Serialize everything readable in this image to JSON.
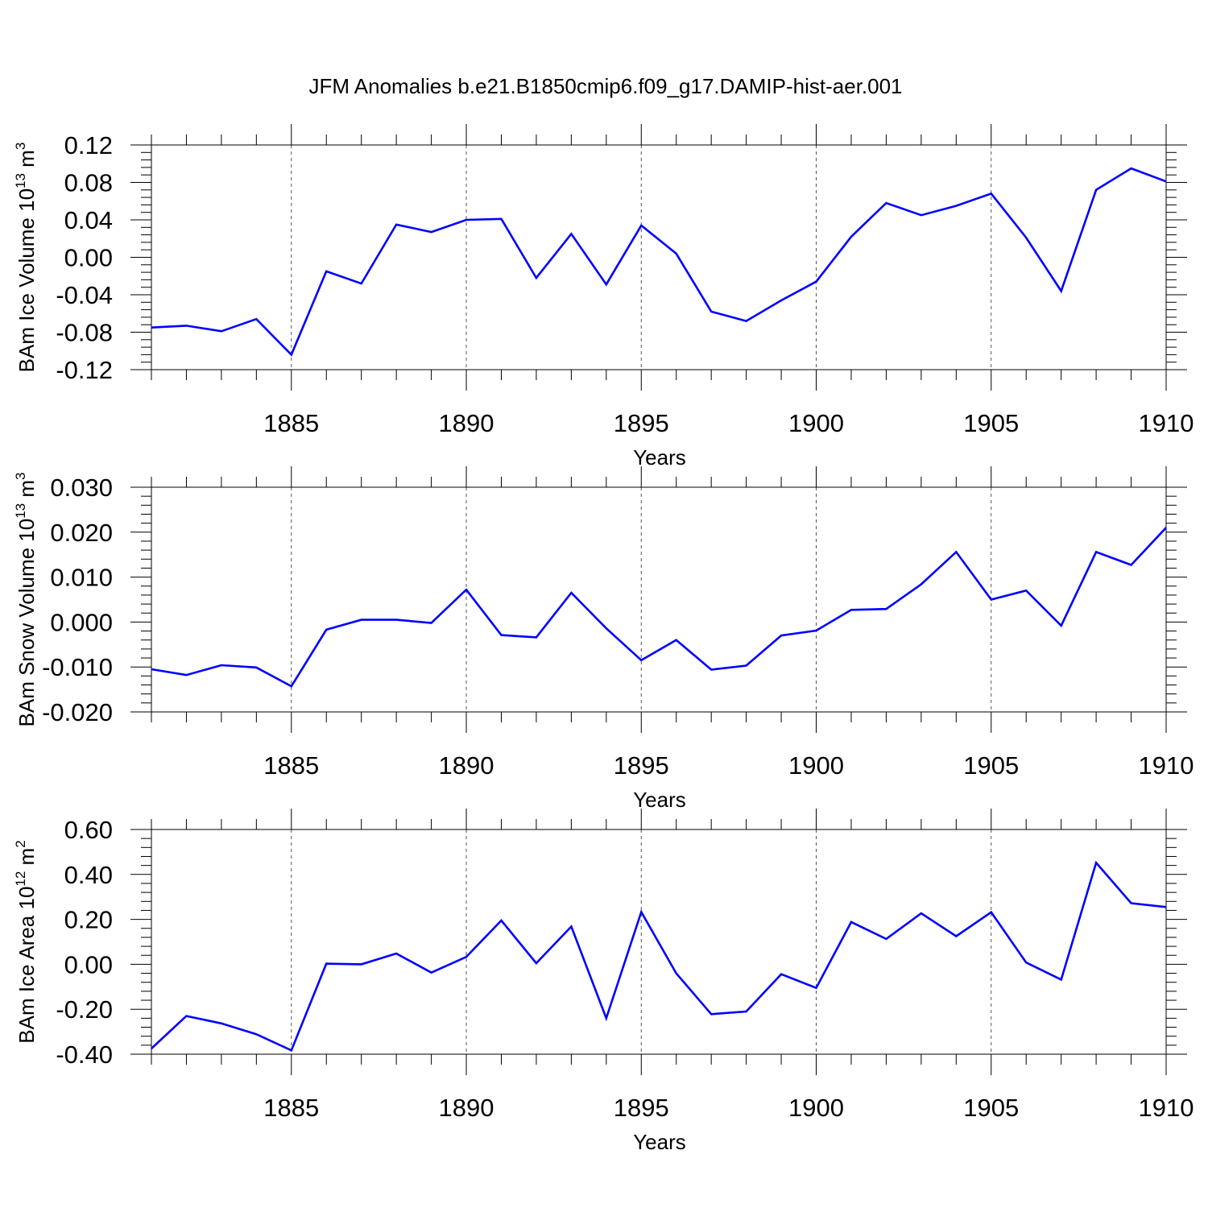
{
  "title": "JFM Anomalies b.e21.B1850cmip6.f09_g17.DAMIP-hist-aer.001",
  "line_color": "#0000ff",
  "chart_data": [
    {
      "type": "line",
      "ylabel_main": "BAm Ice Volume 10",
      "ylabel_exp": "13",
      "ylabel_unit": " m",
      "ylabel_unit_exp": "3",
      "xlabel": "Years",
      "xlim": [
        1881,
        1910
      ],
      "ylim": [
        -0.12,
        0.12
      ],
      "yticks": [
        -0.12,
        -0.08,
        -0.04,
        0.0,
        0.04,
        0.08,
        0.12
      ],
      "ytick_labels": [
        "-0.12",
        "-0.08",
        "-0.04",
        "0.00",
        "0.04",
        "0.08",
        "0.12"
      ],
      "xticks": [
        1885,
        1890,
        1895,
        1900,
        1905,
        1910
      ],
      "xtick_labels": [
        "1885",
        "1890",
        "1895",
        "1900",
        "1905",
        "1910"
      ],
      "x": [
        1881,
        1882,
        1883,
        1884,
        1885,
        1886,
        1887,
        1888,
        1889,
        1890,
        1891,
        1892,
        1893,
        1894,
        1895,
        1896,
        1897,
        1898,
        1899,
        1900,
        1901,
        1902,
        1903,
        1904,
        1905,
        1906,
        1907,
        1908,
        1909,
        1910
      ],
      "series": [
        {
          "name": "BAm Ice Volume",
          "values": [
            -0.075,
            -0.073,
            -0.079,
            -0.066,
            -0.104,
            -0.015,
            -0.028,
            0.035,
            0.027,
            0.04,
            0.041,
            -0.022,
            0.025,
            -0.029,
            0.034,
            0.004,
            -0.058,
            -0.068,
            -0.046,
            -0.026,
            0.022,
            0.058,
            0.045,
            0.055,
            0.068,
            0.021,
            -0.036,
            0.072,
            0.095,
            0.081
          ]
        }
      ]
    },
    {
      "type": "line",
      "ylabel_main": "BAm Snow Volume 10",
      "ylabel_exp": "13",
      "ylabel_unit": " m",
      "ylabel_unit_exp": "3",
      "xlabel": "Years",
      "xlim": [
        1881,
        1910
      ],
      "ylim": [
        -0.02,
        0.03
      ],
      "yticks": [
        -0.02,
        -0.01,
        0.0,
        0.01,
        0.02,
        0.03
      ],
      "ytick_labels": [
        "-0.020",
        "-0.010",
        "0.000",
        "0.010",
        "0.020",
        "0.030"
      ],
      "xticks": [
        1885,
        1890,
        1895,
        1900,
        1905,
        1910
      ],
      "xtick_labels": [
        "1885",
        "1890",
        "1895",
        "1900",
        "1905",
        "1910"
      ],
      "x": [
        1881,
        1882,
        1883,
        1884,
        1885,
        1886,
        1887,
        1888,
        1889,
        1890,
        1891,
        1892,
        1893,
        1894,
        1895,
        1896,
        1897,
        1898,
        1899,
        1900,
        1901,
        1902,
        1903,
        1904,
        1905,
        1906,
        1907,
        1908,
        1909,
        1910
      ],
      "series": [
        {
          "name": "BAm Snow Volume",
          "values": [
            -0.0105,
            -0.0118,
            -0.0096,
            -0.0101,
            -0.0143,
            -0.0017,
            0.0005,
            0.0005,
            -0.0002,
            0.0072,
            -0.0029,
            -0.0034,
            0.0065,
            -0.0014,
            -0.0085,
            -0.004,
            -0.0106,
            -0.0097,
            -0.003,
            -0.0019,
            0.0027,
            0.0029,
            0.0084,
            0.0156,
            0.005,
            0.007,
            -0.0008,
            0.0156,
            0.0127,
            0.021
          ]
        }
      ]
    },
    {
      "type": "line",
      "ylabel_main": "BAm Ice Area 10",
      "ylabel_exp": "12",
      "ylabel_unit": " m",
      "ylabel_unit_exp": "2",
      "xlabel": "Years",
      "xlim": [
        1881,
        1910
      ],
      "ylim": [
        -0.4,
        0.6
      ],
      "yticks": [
        -0.4,
        -0.2,
        0.0,
        0.2,
        0.4,
        0.6
      ],
      "ytick_labels": [
        "-0.40",
        "-0.20",
        "0.00",
        "0.20",
        "0.40",
        "0.60"
      ],
      "xticks": [
        1885,
        1890,
        1895,
        1900,
        1905,
        1910
      ],
      "xtick_labels": [
        "1885",
        "1890",
        "1895",
        "1900",
        "1905",
        "1910"
      ],
      "x": [
        1881,
        1882,
        1883,
        1884,
        1885,
        1886,
        1887,
        1888,
        1889,
        1890,
        1891,
        1892,
        1893,
        1894,
        1895,
        1896,
        1897,
        1898,
        1899,
        1900,
        1901,
        1902,
        1903,
        1904,
        1905,
        1906,
        1907,
        1908,
        1909,
        1910
      ],
      "series": [
        {
          "name": "BAm Ice Area",
          "values": [
            -0.375,
            -0.23,
            -0.263,
            -0.311,
            -0.383,
            0.003,
            0.0,
            0.048,
            -0.037,
            0.033,
            0.195,
            0.005,
            0.168,
            -0.24,
            0.233,
            -0.04,
            -0.222,
            -0.21,
            -0.044,
            -0.105,
            0.188,
            0.113,
            0.227,
            0.125,
            0.232,
            0.008,
            -0.068,
            0.452,
            0.272,
            0.255
          ]
        }
      ]
    }
  ]
}
